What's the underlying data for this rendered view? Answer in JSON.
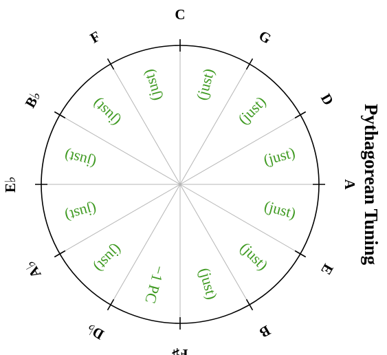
{
  "title": "Pythagorean Tuning",
  "notes": [
    "C",
    "G",
    "D",
    "A",
    "E",
    "B",
    "F♯",
    "D♭",
    "A♭",
    "E♭",
    "B♭",
    "F"
  ],
  "intervals": [
    "(just)",
    "(just)",
    "(just)",
    "(just)",
    "(just)",
    "(just)",
    "−1 PC",
    "(just)",
    "(just)",
    "(just)",
    "(just)",
    "(just)"
  ]
}
